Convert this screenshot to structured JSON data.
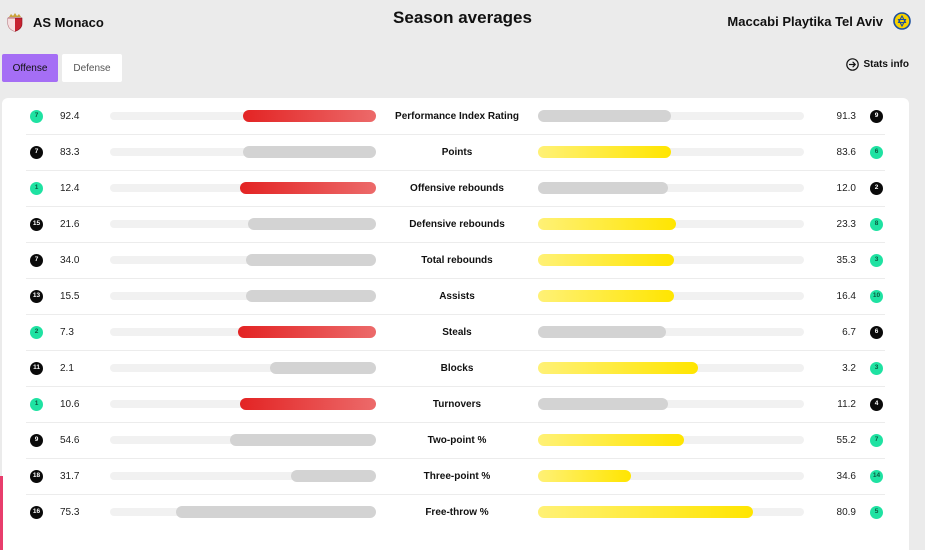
{
  "header": {
    "title": "Season averages",
    "home_team": "AS Monaco",
    "away_team": "Maccabi Playtika Tel Aviv"
  },
  "tabs": [
    {
      "label": "Offense",
      "active": true
    },
    {
      "label": "Defense",
      "active": false
    }
  ],
  "stats_info_label": "Stats info",
  "colors": {
    "home_better": "#e32424",
    "away_better": "#ffe500",
    "neutral": "#d3d3d3",
    "top_rank": "#1fe2a2",
    "tab_active": "#a56ef5"
  },
  "stats": [
    {
      "label": "Performance Index Rating",
      "home_rank": "7",
      "home_value": "92.4",
      "away_value": "91.3",
      "away_rank": "9",
      "home_bar": 0.5,
      "away_bar": 0.5,
      "home_rank_top": true,
      "away_rank_top": false,
      "leader": "home"
    },
    {
      "label": "Points",
      "home_rank": "7",
      "home_value": "83.3",
      "away_value": "83.6",
      "away_rank": "6",
      "home_bar": 0.5,
      "away_bar": 0.5,
      "home_rank_top": false,
      "away_rank_top": true,
      "leader": "away"
    },
    {
      "label": "Offensive rebounds",
      "home_rank": "1",
      "home_value": "12.4",
      "away_value": "12.0",
      "away_rank": "2",
      "home_bar": 0.51,
      "away_bar": 0.49,
      "home_rank_top": true,
      "away_rank_top": false,
      "leader": "home"
    },
    {
      "label": "Defensive rebounds",
      "home_rank": "15",
      "home_value": "21.6",
      "away_value": "23.3",
      "away_rank": "8",
      "home_bar": 0.48,
      "away_bar": 0.52,
      "home_rank_top": false,
      "away_rank_top": true,
      "leader": "away"
    },
    {
      "label": "Total rebounds",
      "home_rank": "7",
      "home_value": "34.0",
      "away_value": "35.3",
      "away_rank": "3",
      "home_bar": 0.49,
      "away_bar": 0.51,
      "home_rank_top": false,
      "away_rank_top": true,
      "leader": "away"
    },
    {
      "label": "Assists",
      "home_rank": "13",
      "home_value": "15.5",
      "away_value": "16.4",
      "away_rank": "10",
      "home_bar": 0.49,
      "away_bar": 0.51,
      "home_rank_top": false,
      "away_rank_top": true,
      "leader": "away"
    },
    {
      "label": "Steals",
      "home_rank": "2",
      "home_value": "7.3",
      "away_value": "6.7",
      "away_rank": "6",
      "home_bar": 0.52,
      "away_bar": 0.48,
      "home_rank_top": true,
      "away_rank_top": false,
      "leader": "home"
    },
    {
      "label": "Blocks",
      "home_rank": "11",
      "home_value": "2.1",
      "away_value": "3.2",
      "away_rank": "3",
      "home_bar": 0.4,
      "away_bar": 0.6,
      "home_rank_top": false,
      "away_rank_top": true,
      "leader": "away"
    },
    {
      "label": "Turnovers",
      "home_rank": "1",
      "home_value": "10.6",
      "away_value": "11.2",
      "away_rank": "4",
      "home_bar": 0.51,
      "away_bar": 0.49,
      "home_rank_top": true,
      "away_rank_top": false,
      "leader": "home"
    },
    {
      "label": "Two-point %",
      "home_rank": "9",
      "home_value": "54.6",
      "away_value": "55.2",
      "away_rank": "7",
      "home_bar": 0.55,
      "away_bar": 0.55,
      "home_rank_top": false,
      "away_rank_top": true,
      "leader": "away"
    },
    {
      "label": "Three-point %",
      "home_rank": "18",
      "home_value": "31.7",
      "away_value": "34.6",
      "away_rank": "14",
      "home_bar": 0.32,
      "away_bar": 0.35,
      "home_rank_top": false,
      "away_rank_top": true,
      "leader": "away"
    },
    {
      "label": "Free-throw %",
      "home_rank": "16",
      "home_value": "75.3",
      "away_value": "80.9",
      "away_rank": "5",
      "home_bar": 0.75,
      "away_bar": 0.81,
      "home_rank_top": false,
      "away_rank_top": true,
      "leader": "away"
    }
  ]
}
